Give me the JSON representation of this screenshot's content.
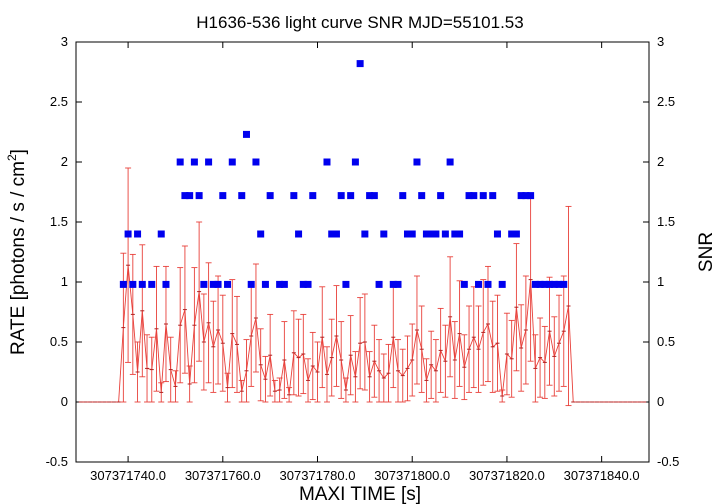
{
  "chart_data": {
    "type": "scatter",
    "title": "H1636-536 light curve  SNR MJD=55101.53",
    "xlabel": "MAXI TIME [s]",
    "ylabel_left_main": "RATE [photons / s / cm",
    "ylabel_left_sup": "2",
    "ylabel_left_end": "]",
    "ylabel_right": "SNR",
    "xlim": [
      307371729,
      307371850
    ],
    "ylim": [
      -0.5,
      3
    ],
    "x_ticks": [
      307371740,
      307371760,
      307371780,
      307371800,
      307371820,
      307371840
    ],
    "x_tick_labels": [
      "307371740.0",
      "307371760.0",
      "307371780.0",
      "307371800.0",
      "307371820.0",
      "307371840.0"
    ],
    "y_ticks": [
      -0.5,
      0,
      0.5,
      1,
      1.5,
      2,
      2.5,
      3
    ],
    "y_tick_labels": [
      "-0.5",
      "0",
      "0.5",
      "1",
      "1.5",
      "2",
      "2.5",
      "3"
    ],
    "grid": false,
    "legend": "none",
    "colors": {
      "rate": "#e8403a",
      "snr": "#0000ee",
      "axis": "#000000"
    },
    "rate_series": {
      "name": "",
      "x": [
        307371730,
        307371731,
        307371732,
        307371733,
        307371734,
        307371735,
        307371736,
        307371737,
        307371738,
        307371739,
        307371740,
        307371741,
        307371742,
        307371743,
        307371744,
        307371745,
        307371746,
        307371747,
        307371748,
        307371749,
        307371750,
        307371751,
        307371752,
        307371753,
        307371754,
        307371755,
        307371756,
        307371757,
        307371758,
        307371759,
        307371760,
        307371761,
        307371762,
        307371763,
        307371764,
        307371765,
        307371766,
        307371767,
        307371768,
        307371769,
        307371770,
        307371771,
        307371772,
        307371773,
        307371774,
        307371775,
        307371776,
        307371777,
        307371778,
        307371779,
        307371780,
        307371781,
        307371782,
        307371783,
        307371784,
        307371785,
        307371786,
        307371787,
        307371788,
        307371789,
        307371790,
        307371791,
        307371792,
        307371793,
        307371794,
        307371795,
        307371796,
        307371797,
        307371798,
        307371799,
        307371800,
        307371801,
        307371802,
        307371803,
        307371804,
        307371805,
        307371806,
        307371807,
        307371808,
        307371809,
        307371810,
        307371811,
        307371812,
        307371813,
        307371814,
        307371815,
        307371816,
        307371817,
        307371818,
        307371819,
        307371820,
        307371821,
        307371822,
        307371823,
        307371824,
        307371825,
        307371826,
        307371827,
        307371828,
        307371829,
        307371830,
        307371831,
        307371832,
        307371833,
        307371834,
        307371835,
        307371836,
        307371837,
        307371838,
        307371839,
        307371840,
        307371841,
        307371842,
        307371843,
        307371844,
        307371845,
        307371846,
        307371847,
        307371848,
        307371849
      ],
      "y": [
        0,
        0,
        0,
        0,
        0,
        0,
        0,
        0,
        0,
        0.62,
        1.14,
        0.73,
        0.25,
        0.76,
        0.28,
        0.27,
        0.61,
        0.08,
        0.65,
        0.27,
        0.13,
        0.64,
        0.77,
        0.15,
        0.64,
        0.92,
        0.5,
        0.66,
        0.46,
        0.6,
        0.49,
        0.12,
        0.57,
        0.48,
        0.09,
        0.26,
        0.55,
        0.7,
        0.31,
        0.19,
        0.39,
        0.09,
        0.1,
        0.35,
        0.06,
        0.41,
        0.37,
        0.4,
        0.18,
        0.3,
        0.25,
        0.54,
        0.23,
        0.37,
        0.55,
        0.35,
        0.1,
        0.39,
        0.21,
        0.49,
        0.5,
        0.21,
        0.34,
        0.26,
        0.2,
        0.24,
        0.54,
        0.26,
        0.22,
        0.28,
        0.35,
        0.6,
        0.44,
        0.18,
        0.31,
        0.26,
        0.43,
        0.34,
        0.71,
        0.35,
        0.57,
        0.29,
        0.44,
        0.54,
        0.44,
        0.58,
        0.65,
        0.46,
        0.49,
        0.05,
        0.4,
        0.36,
        0.79,
        0.45,
        0.6,
        1.02,
        0.28,
        0.37,
        0.33,
        0.59,
        0.38,
        0.49,
        0.59,
        0.8,
        0,
        0,
        0,
        0,
        0,
        0,
        0,
        0,
        0,
        0,
        0,
        0,
        0,
        0,
        0,
        0
      ],
      "err": [
        0,
        0,
        0,
        0,
        0,
        0,
        0,
        0,
        0,
        0.62,
        0.81,
        0.5,
        0.25,
        0.55,
        0.28,
        0.27,
        0.52,
        0.08,
        0.48,
        0.27,
        0.13,
        0.48,
        0.53,
        0.15,
        0.48,
        0.58,
        0.4,
        0.5,
        0.38,
        0.45,
        0.4,
        0.12,
        0.45,
        0.4,
        0.09,
        0.26,
        0.42,
        0.45,
        0.3,
        0.19,
        0.34,
        0.09,
        0.1,
        0.32,
        0.06,
        0.35,
        0.32,
        0.33,
        0.18,
        0.28,
        0.25,
        0.42,
        0.23,
        0.32,
        0.42,
        0.32,
        0.1,
        0.33,
        0.21,
        0.38,
        0.4,
        0.21,
        0.3,
        0.26,
        0.2,
        0.24,
        0.42,
        0.26,
        0.22,
        0.27,
        0.3,
        0.45,
        0.36,
        0.18,
        0.28,
        0.26,
        0.35,
        0.3,
        0.5,
        0.32,
        0.44,
        0.27,
        0.36,
        0.42,
        0.36,
        0.44,
        0.48,
        0.38,
        0.4,
        0.05,
        0.34,
        0.32,
        0.53,
        0.36,
        0.45,
        0.68,
        0.28,
        0.33,
        0.3,
        0.45,
        0.33,
        0.4,
        0.46,
        0.83,
        0,
        0,
        0,
        0,
        0,
        0,
        0,
        0,
        0,
        0,
        0,
        0,
        0,
        0,
        0,
        0
      ]
    },
    "snr_series": {
      "name": "",
      "x": [
        307371739,
        307371740,
        307371741,
        307371742,
        307371743,
        307371745,
        307371747,
        307371748,
        307371751,
        307371752,
        307371753,
        307371754,
        307371755,
        307371756,
        307371757,
        307371758,
        307371759,
        307371760,
        307371761,
        307371762,
        307371764,
        307371765,
        307371766,
        307371767,
        307371768,
        307371769,
        307371770,
        307371772,
        307371773,
        307371775,
        307371776,
        307371777,
        307371778,
        307371779,
        307371782,
        307371783,
        307371784,
        307371785,
        307371786,
        307371787,
        307371788,
        307371789,
        307371790,
        307371791,
        307371792,
        307371793,
        307371794,
        307371796,
        307371797,
        307371798,
        307371799,
        307371800,
        307371801,
        307371802,
        307371803,
        307371804,
        307371805,
        307371806,
        307371807,
        307371808,
        307371809,
        307371810,
        307371811,
        307371812,
        307371813,
        307371814,
        307371815,
        307371816,
        307371817,
        307371818,
        307371819,
        307371821,
        307371822,
        307371823,
        307371824,
        307371825,
        307371826,
        307371827,
        307371828,
        307371829,
        307371830,
        307371831,
        307371832
      ],
      "y": [
        0.98,
        1.4,
        0.98,
        1.4,
        0.98,
        0.98,
        1.4,
        0.98,
        2.0,
        1.72,
        1.72,
        2.0,
        1.72,
        0.98,
        2.0,
        0.98,
        0.98,
        1.72,
        0.98,
        2.0,
        1.72,
        2.23,
        0.98,
        2.0,
        1.4,
        0.98,
        1.72,
        0.98,
        0.98,
        1.72,
        1.4,
        0.98,
        0.98,
        1.72,
        2.0,
        1.4,
        1.4,
        1.72,
        0.98,
        1.72,
        2.0,
        2.82,
        1.4,
        1.72,
        1.72,
        0.98,
        1.4,
        0.98,
        0.98,
        1.72,
        1.4,
        1.4,
        2.0,
        1.72,
        1.4,
        1.4,
        1.4,
        1.72,
        1.4,
        2.0,
        1.4,
        1.4,
        0.98,
        1.72,
        1.72,
        0.98,
        1.72,
        0.98,
        1.72,
        1.4,
        0.98,
        1.4,
        1.4,
        1.72,
        1.72,
        1.72,
        0.98,
        0.98,
        0.98,
        0.98,
        0.98,
        0.98,
        0.98
      ]
    }
  }
}
